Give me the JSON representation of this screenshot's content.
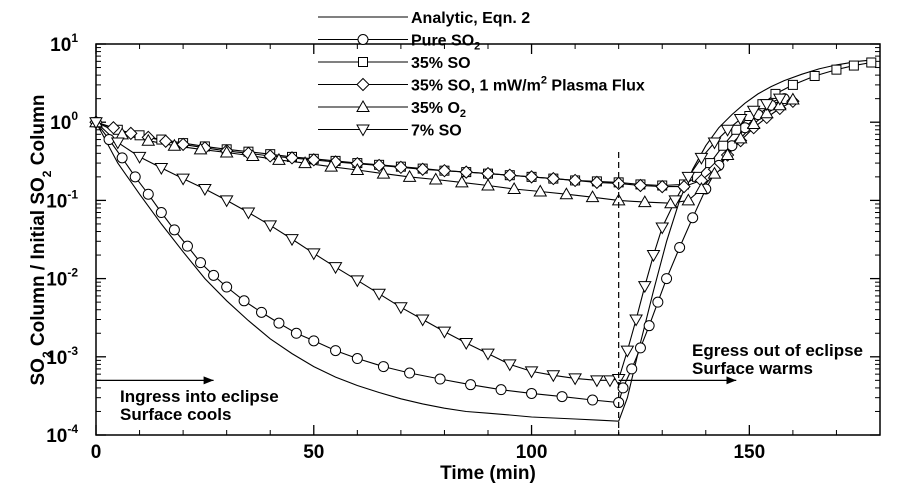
{
  "chart_data": {
    "type": "line",
    "xlabel": "Time (min)",
    "ylabel": {
      "a": "SO",
      "sub1": "2",
      "b": " Column / Initial SO",
      "sub2": "2",
      "c": " Column"
    },
    "xlim": [
      0,
      180
    ],
    "ylim": [
      0.0001,
      10
    ],
    "y_scale": "log",
    "x_ticks": [
      0,
      50,
      100,
      150
    ],
    "x_tick_labels": [
      "0",
      "50",
      "100",
      "150"
    ],
    "y_ticks": [
      {
        "value": 0.0001,
        "base": "10",
        "exp": "-4"
      },
      {
        "value": 0.001,
        "base": "10",
        "exp": "-3"
      },
      {
        "value": 0.01,
        "base": "10",
        "exp": "-2"
      },
      {
        "value": 0.1,
        "base": "10",
        "exp": "-1"
      },
      {
        "value": 1,
        "base": "10",
        "exp": "0"
      },
      {
        "value": 10,
        "base": "10",
        "exp": "1"
      }
    ],
    "grid": false,
    "legend_position": "top-center",
    "series": [
      {
        "name": "Analytic, Eqn. 2",
        "marker": "none",
        "x": [
          0,
          5,
          10,
          15,
          20,
          25,
          30,
          35,
          40,
          45,
          50,
          55,
          60,
          65,
          70,
          75,
          80,
          85,
          90,
          95,
          100,
          105,
          110,
          115,
          120,
          122,
          125,
          128,
          131,
          134,
          137,
          140,
          143,
          146,
          149,
          152,
          155,
          158,
          162,
          166,
          170,
          175,
          179
        ],
        "y": [
          1.0,
          0.3,
          0.12,
          0.05,
          0.022,
          0.01,
          0.0052,
          0.0029,
          0.0017,
          0.0011,
          0.00075,
          0.00055,
          0.00043,
          0.00035,
          0.00029,
          0.00025,
          0.00022,
          0.0002,
          0.00019,
          0.00018,
          0.00017,
          0.000165,
          0.00016,
          0.000155,
          0.00015,
          0.0003,
          0.0015,
          0.007,
          0.03,
          0.1,
          0.25,
          0.5,
          0.85,
          1.25,
          1.75,
          2.3,
          2.85,
          3.4,
          4.1,
          4.8,
          5.4,
          6.0,
          6.3
        ]
      },
      {
        "name": "Pure SO₂",
        "name_parts": {
          "a": "Pure SO",
          "sub": "2",
          "b": ""
        },
        "marker": "circle",
        "x": [
          0,
          3,
          6,
          9,
          12,
          15,
          18,
          21,
          24,
          27,
          30,
          34,
          38,
          42,
          46,
          50,
          55,
          60,
          66,
          72,
          79,
          86,
          93,
          100,
          107,
          114,
          120,
          121,
          123,
          125,
          127,
          129,
          131,
          134,
          137,
          140,
          143,
          146,
          149,
          152,
          155,
          158
        ],
        "y": [
          1.0,
          0.6,
          0.35,
          0.2,
          0.12,
          0.07,
          0.042,
          0.026,
          0.016,
          0.011,
          0.0078,
          0.0052,
          0.0037,
          0.0027,
          0.002,
          0.0016,
          0.0012,
          0.00095,
          0.00075,
          0.00062,
          0.00052,
          0.00044,
          0.00038,
          0.00034,
          0.00031,
          0.00028,
          0.00026,
          0.0004,
          0.0007,
          0.0013,
          0.0025,
          0.005,
          0.01,
          0.025,
          0.06,
          0.14,
          0.28,
          0.5,
          0.85,
          1.25,
          1.65,
          2.0
        ]
      },
      {
        "name": "35% SO",
        "name_parts": {
          "a": "35% SO",
          "sub": "",
          "b": ""
        },
        "marker": "square",
        "x": [
          0,
          5,
          10,
          15,
          20,
          25,
          30,
          35,
          40,
          45,
          50,
          55,
          60,
          65,
          70,
          75,
          80,
          85,
          90,
          95,
          100,
          105,
          110,
          115,
          120,
          125,
          130,
          135,
          138,
          141,
          144,
          147,
          150,
          153,
          156,
          160,
          165,
          170,
          174,
          178
        ],
        "y": [
          1.0,
          0.8,
          0.68,
          0.6,
          0.54,
          0.49,
          0.45,
          0.42,
          0.39,
          0.36,
          0.34,
          0.32,
          0.3,
          0.285,
          0.27,
          0.255,
          0.24,
          0.23,
          0.22,
          0.21,
          0.2,
          0.19,
          0.18,
          0.175,
          0.17,
          0.16,
          0.155,
          0.16,
          0.2,
          0.3,
          0.5,
          0.8,
          1.2,
          1.7,
          2.3,
          3.0,
          3.9,
          4.7,
          5.3,
          5.8
        ]
      },
      {
        "name": "35% SO, 1 mW/m² Plasma Flux",
        "name_parts": {
          "a": "35% SO, 1 mW/m",
          "sup": "2",
          "b": " Plasma Flux"
        },
        "marker": "diamond",
        "x": [
          0,
          4,
          8,
          12,
          16,
          20,
          25,
          30,
          35,
          40,
          45,
          50,
          55,
          60,
          65,
          70,
          75,
          80,
          85,
          90,
          95,
          100,
          105,
          110,
          115,
          120,
          125,
          130,
          135,
          139,
          142,
          145,
          148,
          151,
          154,
          157,
          160
        ],
        "y": [
          1.0,
          0.85,
          0.72,
          0.64,
          0.57,
          0.52,
          0.47,
          0.43,
          0.4,
          0.37,
          0.35,
          0.33,
          0.31,
          0.295,
          0.28,
          0.265,
          0.25,
          0.24,
          0.23,
          0.22,
          0.21,
          0.2,
          0.19,
          0.18,
          0.17,
          0.165,
          0.155,
          0.15,
          0.15,
          0.18,
          0.25,
          0.38,
          0.58,
          0.85,
          1.15,
          1.5,
          1.85
        ]
      },
      {
        "name": "35% O₂",
        "name_parts": {
          "a": "35% O",
          "sub": "2",
          "b": ""
        },
        "marker": "triangle-up",
        "x": [
          0,
          6,
          12,
          18,
          24,
          30,
          36,
          42,
          48,
          54,
          60,
          66,
          72,
          78,
          84,
          90,
          96,
          102,
          108,
          114,
          120,
          126,
          132,
          136,
          139,
          142,
          145,
          148,
          151,
          154,
          157,
          160
        ],
        "y": [
          1.0,
          0.7,
          0.58,
          0.5,
          0.45,
          0.41,
          0.37,
          0.33,
          0.3,
          0.27,
          0.245,
          0.22,
          0.2,
          0.185,
          0.17,
          0.155,
          0.14,
          0.13,
          0.12,
          0.11,
          0.1,
          0.095,
          0.092,
          0.1,
          0.14,
          0.22,
          0.38,
          0.62,
          0.95,
          1.3,
          1.65,
          1.95
        ]
      },
      {
        "name": "7% SO",
        "name_parts": {
          "a": "7% SO",
          "sub": "",
          "b": ""
        },
        "marker": "triangle-down",
        "x": [
          0,
          5,
          10,
          15,
          20,
          25,
          30,
          35,
          40,
          45,
          50,
          55,
          60,
          65,
          70,
          75,
          80,
          85,
          90,
          95,
          100,
          105,
          110,
          115,
          118,
          120,
          122,
          124,
          126,
          128,
          130,
          133,
          136,
          139,
          142,
          145,
          148,
          151,
          154,
          157
        ],
        "y": [
          1.0,
          0.55,
          0.36,
          0.26,
          0.19,
          0.14,
          0.1,
          0.07,
          0.048,
          0.032,
          0.021,
          0.014,
          0.0095,
          0.0064,
          0.0043,
          0.003,
          0.0021,
          0.0015,
          0.0011,
          0.0008,
          0.00065,
          0.00058,
          0.00053,
          0.0005,
          0.0005,
          0.00052,
          0.0012,
          0.003,
          0.008,
          0.02,
          0.045,
          0.1,
          0.2,
          0.35,
          0.55,
          0.8,
          1.1,
          1.4,
          1.7,
          2.0
        ]
      }
    ],
    "vertical_reference_line": {
      "x": 120,
      "style": "dashed"
    },
    "annotations": [
      {
        "name": "ingress",
        "line1": "Ingress into eclipse",
        "line2": "Surface cools",
        "arrow_from_x": 0,
        "arrow_to_x": 27,
        "arrow_y": 0.0005
      },
      {
        "name": "egress",
        "line1": "Egress out of eclipse",
        "line2": "Surface warms",
        "arrow_from_x": 120,
        "arrow_to_x": 147,
        "arrow_y": 0.0005
      }
    ]
  }
}
